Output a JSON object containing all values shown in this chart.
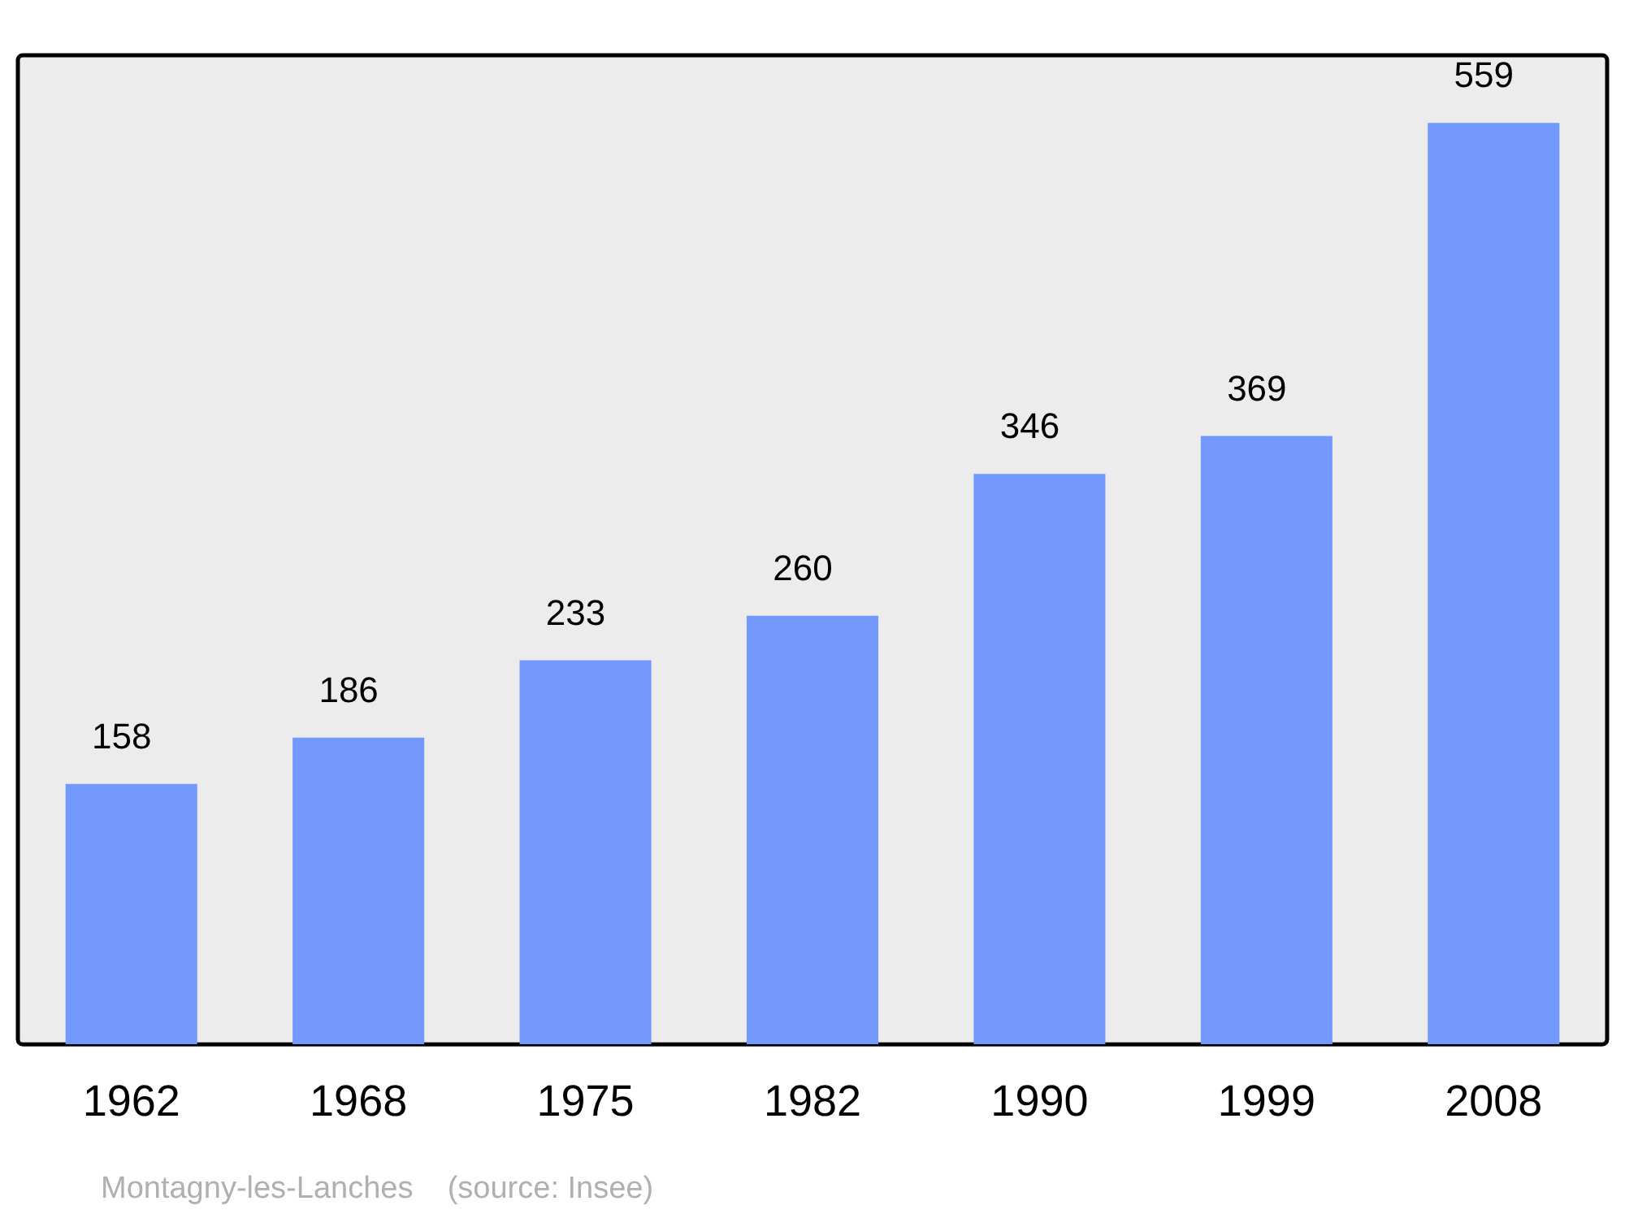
{
  "chart_data": {
    "type": "bar",
    "categories": [
      "1962",
      "1968",
      "1975",
      "1982",
      "1990",
      "1999",
      "2008"
    ],
    "values": [
      158,
      186,
      233,
      260,
      346,
      369,
      559
    ],
    "color": "#7399ff",
    "data_labels": true,
    "grid": false,
    "legend": false,
    "annotations": [
      "Montagny-les-Lanches    (source: Insee)"
    ]
  }
}
